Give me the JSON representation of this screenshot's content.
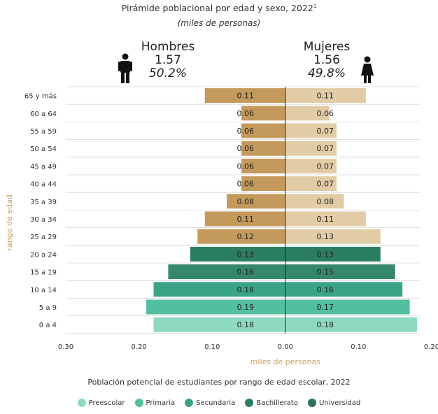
{
  "header": {
    "title": "Pirámide poblacional por edad y sexo, 2022",
    "title_sup": "1",
    "subtitle": "(miles de personas)"
  },
  "men": {
    "label": "Hombres",
    "total": "1.57",
    "pct": "50.2%"
  },
  "women": {
    "label": "Mujeres",
    "total": "1.56",
    "pct": "49.8%"
  },
  "footnote": "Población potencial de estudiantes por rango de edad escolar, 2022",
  "legend": [
    {
      "label": "Preescolar",
      "color": "#8fd9c3"
    },
    {
      "label": "Primaria",
      "color": "#52c0a0"
    },
    {
      "label": "Secundaria",
      "color": "#3aa585"
    },
    {
      "label": "Bachillerato",
      "color": "#2b7d62"
    },
    {
      "label": "Universidad",
      "color": "#2a7357"
    }
  ],
  "chart_data": {
    "type": "bar",
    "orientation": "horizontal-pyramid",
    "categories": [
      "65 y más",
      "60 a 64",
      "55 a 59",
      "50 a 54",
      "45 a 49",
      "40 a 44",
      "35 a 39",
      "30 a 34",
      "25 a 29",
      "20 a 24",
      "15 a 19",
      "10 a 14",
      "5 a 9",
      "0 a 4"
    ],
    "series": [
      {
        "name": "Hombres",
        "values": [
          0.11,
          0.06,
          0.06,
          0.06,
          0.06,
          0.06,
          0.08,
          0.11,
          0.12,
          0.13,
          0.16,
          0.18,
          0.19,
          0.18
        ],
        "labels": [
          "0.11",
          "0.06",
          "0.06",
          "0.06",
          "0.06",
          "0.06",
          "0.08",
          "0.11",
          "0.12",
          "0.13",
          "0.16",
          "0.18",
          "0.19",
          "0.18"
        ]
      },
      {
        "name": "Mujeres",
        "values": [
          0.11,
          0.06,
          0.07,
          0.07,
          0.07,
          0.07,
          0.08,
          0.11,
          0.13,
          0.13,
          0.15,
          0.16,
          0.17,
          0.18
        ],
        "labels": [
          "0.11",
          "0.06",
          "0.07",
          "0.07",
          "0.07",
          "0.07",
          "0.08",
          "0.11",
          "0.13",
          "0.13",
          "0.15",
          "0.16",
          "0.17",
          "0.18"
        ]
      }
    ],
    "bar_colors": [
      "#c49a5c",
      "#c49a5c",
      "#c49a5c",
      "#c49a5c",
      "#c49a5c",
      "#c49a5c",
      "#c49a5c",
      "#c49a5c",
      "#c49a5c",
      "#2b7d62",
      "#35886c",
      "#3aa585",
      "#52c0a0",
      "#8fd9c3"
    ],
    "bar_colors_women_light": "#e2cca6",
    "xlabel": "miles de personas",
    "ylabel": "rango de edad",
    "xlim": [
      -0.3,
      0.2
    ],
    "xticks": [
      -0.3,
      -0.2,
      -0.1,
      0,
      0.1,
      0.2
    ],
    "xtick_labels": [
      "0.30",
      "0.20",
      "0.10",
      "0.00",
      "0.10",
      "0.20"
    ],
    "grid": true
  }
}
